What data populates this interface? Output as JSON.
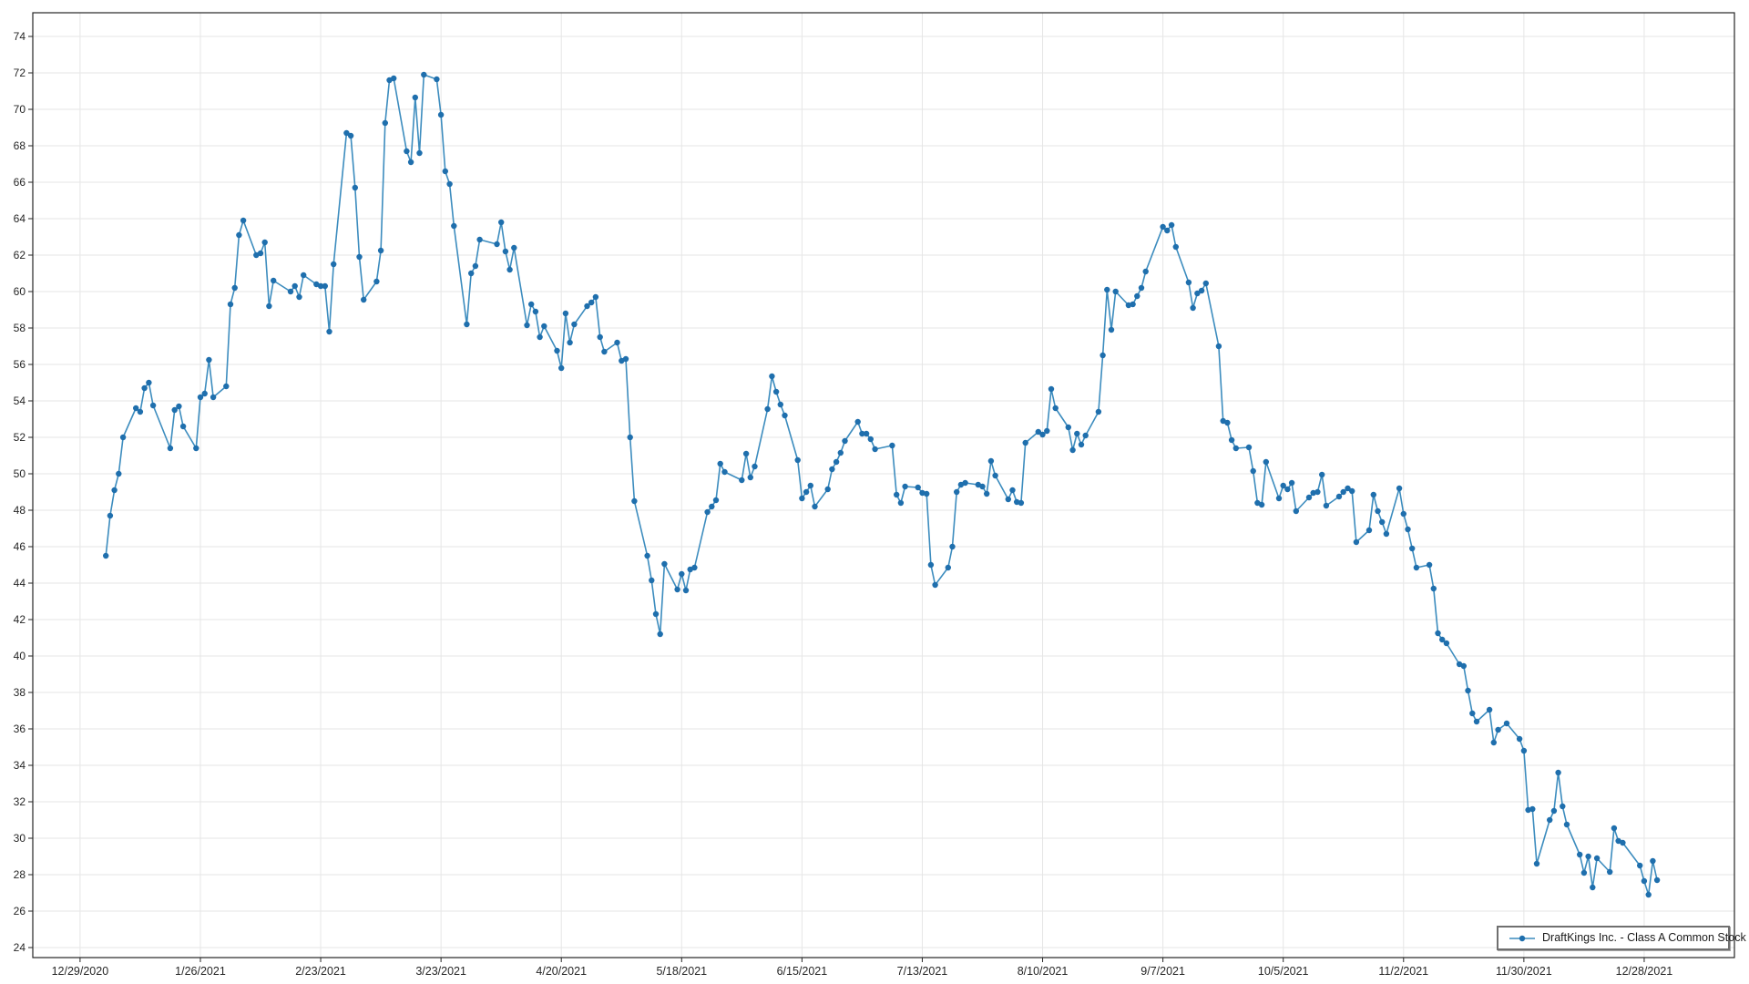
{
  "window": {
    "background": "#ffffff"
  },
  "legend": {
    "label": "DraftKings Inc. - Class A Common Stock"
  },
  "chart_data": {
    "type": "line",
    "title": "",
    "xlabel": "",
    "ylabel": "",
    "grid": "on",
    "legend_position": "bottom-right",
    "axis_color": "#262626",
    "grid_color": "#e6e6e6",
    "label_color": "#262626",
    "line_color": "#3c8cbe",
    "marker_color": "#1f6fad",
    "ylim": [
      23.45,
      75.3
    ],
    "xlim": [
      "2020-12-18",
      "2022-01-18"
    ],
    "y_ticks": [
      24,
      26,
      28,
      30,
      32,
      34,
      36,
      38,
      40,
      42,
      44,
      46,
      48,
      50,
      52,
      54,
      56,
      58,
      60,
      62,
      64,
      66,
      68,
      70,
      72,
      74
    ],
    "x_ticks": [
      {
        "label": "12/29/2020",
        "date": "2020-12-29"
      },
      {
        "label": "1/26/2021",
        "date": "2021-01-26"
      },
      {
        "label": "2/23/2021",
        "date": "2021-02-23"
      },
      {
        "label": "3/23/2021",
        "date": "2021-03-23"
      },
      {
        "label": "4/20/2021",
        "date": "2021-04-20"
      },
      {
        "label": "5/18/2021",
        "date": "2021-05-18"
      },
      {
        "label": "6/15/2021",
        "date": "2021-06-15"
      },
      {
        "label": "7/13/2021",
        "date": "2021-07-13"
      },
      {
        "label": "8/10/2021",
        "date": "2021-08-10"
      },
      {
        "label": "9/7/2021",
        "date": "2021-09-07"
      },
      {
        "label": "10/5/2021",
        "date": "2021-10-05"
      },
      {
        "label": "11/2/2021",
        "date": "2021-11-02"
      },
      {
        "label": "11/30/2021",
        "date": "2021-11-30"
      },
      {
        "label": "12/28/2021",
        "date": "2021-12-28"
      }
    ],
    "series": [
      {
        "name": "DraftKings Inc. - Class A Common Stock",
        "points": [
          [
            "2021-01-04",
            45.5
          ],
          [
            "2021-01-05",
            47.7
          ],
          [
            "2021-01-06",
            49.1
          ],
          [
            "2021-01-07",
            50.0
          ],
          [
            "2021-01-08",
            52.0
          ],
          [
            "2021-01-11",
            53.6
          ],
          [
            "2021-01-12",
            53.4
          ],
          [
            "2021-01-13",
            54.7
          ],
          [
            "2021-01-14",
            55.0
          ],
          [
            "2021-01-15",
            53.75
          ],
          [
            "2021-01-19",
            51.4
          ],
          [
            "2021-01-20",
            53.5
          ],
          [
            "2021-01-21",
            53.7
          ],
          [
            "2021-01-22",
            52.6
          ],
          [
            "2021-01-25",
            51.4
          ],
          [
            "2021-01-26",
            54.2
          ],
          [
            "2021-01-27",
            54.4
          ],
          [
            "2021-01-28",
            56.25
          ],
          [
            "2021-01-29",
            54.2
          ],
          [
            "2021-02-01",
            54.8
          ],
          [
            "2021-02-02",
            59.3
          ],
          [
            "2021-02-03",
            60.2
          ],
          [
            "2021-02-04",
            63.1
          ],
          [
            "2021-02-05",
            63.9
          ],
          [
            "2021-02-08",
            62.0
          ],
          [
            "2021-02-09",
            62.1
          ],
          [
            "2021-02-10",
            62.7
          ],
          [
            "2021-02-11",
            59.2
          ],
          [
            "2021-02-12",
            60.6
          ],
          [
            "2021-02-16",
            60.0
          ],
          [
            "2021-02-17",
            60.3
          ],
          [
            "2021-02-18",
            59.7
          ],
          [
            "2021-02-19",
            60.9
          ],
          [
            "2021-02-22",
            60.4
          ],
          [
            "2021-02-23",
            60.3
          ],
          [
            "2021-02-24",
            60.3
          ],
          [
            "2021-02-25",
            57.8
          ],
          [
            "2021-02-26",
            61.5
          ],
          [
            "2021-03-01",
            68.7
          ],
          [
            "2021-03-02",
            68.55
          ],
          [
            "2021-03-03",
            65.7
          ],
          [
            "2021-03-04",
            61.9
          ],
          [
            "2021-03-05",
            59.55
          ],
          [
            "2021-03-08",
            60.55
          ],
          [
            "2021-03-09",
            62.25
          ],
          [
            "2021-03-10",
            69.25
          ],
          [
            "2021-03-11",
            71.6
          ],
          [
            "2021-03-12",
            71.7
          ],
          [
            "2021-03-15",
            67.7
          ],
          [
            "2021-03-16",
            67.1
          ],
          [
            "2021-03-17",
            70.65
          ],
          [
            "2021-03-18",
            67.6
          ],
          [
            "2021-03-19",
            71.9
          ],
          [
            "2021-03-22",
            71.65
          ],
          [
            "2021-03-23",
            69.7
          ],
          [
            "2021-03-24",
            66.6
          ],
          [
            "2021-03-25",
            65.9
          ],
          [
            "2021-03-26",
            63.6
          ],
          [
            "2021-03-29",
            58.2
          ],
          [
            "2021-03-30",
            61.0
          ],
          [
            "2021-03-31",
            61.4
          ],
          [
            "2021-04-01",
            62.85
          ],
          [
            "2021-04-05",
            62.6
          ],
          [
            "2021-04-06",
            63.8
          ],
          [
            "2021-04-07",
            62.2
          ],
          [
            "2021-04-08",
            61.2
          ],
          [
            "2021-04-09",
            62.4
          ],
          [
            "2021-04-12",
            58.15
          ],
          [
            "2021-04-13",
            59.3
          ],
          [
            "2021-04-14",
            58.9
          ],
          [
            "2021-04-15",
            57.5
          ],
          [
            "2021-04-16",
            58.1
          ],
          [
            "2021-04-19",
            56.75
          ],
          [
            "2021-04-20",
            55.8
          ],
          [
            "2021-04-21",
            58.8
          ],
          [
            "2021-04-22",
            57.2
          ],
          [
            "2021-04-23",
            58.2
          ],
          [
            "2021-04-26",
            59.2
          ],
          [
            "2021-04-27",
            59.4
          ],
          [
            "2021-04-28",
            59.7
          ],
          [
            "2021-04-29",
            57.5
          ],
          [
            "2021-04-30",
            56.7
          ],
          [
            "2021-05-03",
            57.2
          ],
          [
            "2021-05-04",
            56.2
          ],
          [
            "2021-05-05",
            56.3
          ],
          [
            "2021-05-06",
            52.0
          ],
          [
            "2021-05-07",
            48.5
          ],
          [
            "2021-05-10",
            45.5
          ],
          [
            "2021-05-11",
            44.15
          ],
          [
            "2021-05-12",
            42.3
          ],
          [
            "2021-05-13",
            41.2
          ],
          [
            "2021-05-14",
            45.05
          ],
          [
            "2021-05-17",
            43.65
          ],
          [
            "2021-05-18",
            44.5
          ],
          [
            "2021-05-19",
            43.6
          ],
          [
            "2021-05-20",
            44.75
          ],
          [
            "2021-05-21",
            44.85
          ],
          [
            "2021-05-24",
            47.9
          ],
          [
            "2021-05-25",
            48.2
          ],
          [
            "2021-05-26",
            48.55
          ],
          [
            "2021-05-27",
            50.55
          ],
          [
            "2021-05-28",
            50.1
          ],
          [
            "2021-06-01",
            49.65
          ],
          [
            "2021-06-02",
            51.1
          ],
          [
            "2021-06-03",
            49.8
          ],
          [
            "2021-06-04",
            50.4
          ],
          [
            "2021-06-07",
            53.55
          ],
          [
            "2021-06-08",
            55.35
          ],
          [
            "2021-06-09",
            54.5
          ],
          [
            "2021-06-10",
            53.8
          ],
          [
            "2021-06-11",
            53.2
          ],
          [
            "2021-06-14",
            50.75
          ],
          [
            "2021-06-15",
            48.65
          ],
          [
            "2021-06-16",
            49.0
          ],
          [
            "2021-06-17",
            49.35
          ],
          [
            "2021-06-18",
            48.2
          ],
          [
            "2021-06-21",
            49.15
          ],
          [
            "2021-06-22",
            50.25
          ],
          [
            "2021-06-23",
            50.65
          ],
          [
            "2021-06-24",
            51.15
          ],
          [
            "2021-06-25",
            51.8
          ],
          [
            "2021-06-28",
            52.85
          ],
          [
            "2021-06-29",
            52.2
          ],
          [
            "2021-06-30",
            52.2
          ],
          [
            "2021-07-01",
            51.9
          ],
          [
            "2021-07-02",
            51.35
          ],
          [
            "2021-07-06",
            51.55
          ],
          [
            "2021-07-07",
            48.85
          ],
          [
            "2021-07-08",
            48.4
          ],
          [
            "2021-07-09",
            49.3
          ],
          [
            "2021-07-12",
            49.25
          ],
          [
            "2021-07-13",
            48.95
          ],
          [
            "2021-07-14",
            48.9
          ],
          [
            "2021-07-15",
            45.0
          ],
          [
            "2021-07-16",
            43.9
          ],
          [
            "2021-07-19",
            44.85
          ],
          [
            "2021-07-20",
            46.0
          ],
          [
            "2021-07-21",
            49.0
          ],
          [
            "2021-07-22",
            49.4
          ],
          [
            "2021-07-23",
            49.5
          ],
          [
            "2021-07-26",
            49.4
          ],
          [
            "2021-07-27",
            49.3
          ],
          [
            "2021-07-28",
            48.9
          ],
          [
            "2021-07-29",
            50.7
          ],
          [
            "2021-07-30",
            49.9
          ],
          [
            "2021-08-02",
            48.6
          ],
          [
            "2021-08-03",
            49.1
          ],
          [
            "2021-08-04",
            48.45
          ],
          [
            "2021-08-05",
            48.4
          ],
          [
            "2021-08-06",
            51.7
          ],
          [
            "2021-08-09",
            52.3
          ],
          [
            "2021-08-10",
            52.15
          ],
          [
            "2021-08-11",
            52.35
          ],
          [
            "2021-08-12",
            54.65
          ],
          [
            "2021-08-13",
            53.6
          ],
          [
            "2021-08-16",
            52.55
          ],
          [
            "2021-08-17",
            51.3
          ],
          [
            "2021-08-18",
            52.2
          ],
          [
            "2021-08-19",
            51.6
          ],
          [
            "2021-08-20",
            52.1
          ],
          [
            "2021-08-23",
            53.4
          ],
          [
            "2021-08-24",
            56.5
          ],
          [
            "2021-08-25",
            60.1
          ],
          [
            "2021-08-26",
            57.9
          ],
          [
            "2021-08-27",
            60.0
          ],
          [
            "2021-08-30",
            59.25
          ],
          [
            "2021-08-31",
            59.3
          ],
          [
            "2021-09-01",
            59.75
          ],
          [
            "2021-09-02",
            60.2
          ],
          [
            "2021-09-03",
            61.1
          ],
          [
            "2021-09-07",
            63.55
          ],
          [
            "2021-09-08",
            63.35
          ],
          [
            "2021-09-09",
            63.65
          ],
          [
            "2021-09-10",
            62.45
          ],
          [
            "2021-09-13",
            60.5
          ],
          [
            "2021-09-14",
            59.1
          ],
          [
            "2021-09-15",
            59.9
          ],
          [
            "2021-09-16",
            60.05
          ],
          [
            "2021-09-17",
            60.45
          ],
          [
            "2021-09-20",
            57.0
          ],
          [
            "2021-09-21",
            52.9
          ],
          [
            "2021-09-22",
            52.8
          ],
          [
            "2021-09-23",
            51.85
          ],
          [
            "2021-09-24",
            51.4
          ],
          [
            "2021-09-27",
            51.45
          ],
          [
            "2021-09-28",
            50.15
          ],
          [
            "2021-09-29",
            48.4
          ],
          [
            "2021-09-30",
            48.3
          ],
          [
            "2021-10-01",
            50.65
          ],
          [
            "2021-10-04",
            48.65
          ],
          [
            "2021-10-05",
            49.35
          ],
          [
            "2021-10-06",
            49.15
          ],
          [
            "2021-10-07",
            49.5
          ],
          [
            "2021-10-08",
            47.95
          ],
          [
            "2021-10-11",
            48.7
          ],
          [
            "2021-10-12",
            48.95
          ],
          [
            "2021-10-13",
            49.0
          ],
          [
            "2021-10-14",
            49.95
          ],
          [
            "2021-10-15",
            48.25
          ],
          [
            "2021-10-18",
            48.75
          ],
          [
            "2021-10-19",
            49.0
          ],
          [
            "2021-10-20",
            49.2
          ],
          [
            "2021-10-21",
            49.05
          ],
          [
            "2021-10-22",
            46.25
          ],
          [
            "2021-10-25",
            46.9
          ],
          [
            "2021-10-26",
            48.85
          ],
          [
            "2021-10-27",
            47.95
          ],
          [
            "2021-10-28",
            47.35
          ],
          [
            "2021-10-29",
            46.7
          ],
          [
            "2021-11-01",
            49.2
          ],
          [
            "2021-11-02",
            47.8
          ],
          [
            "2021-11-03",
            46.95
          ],
          [
            "2021-11-04",
            45.9
          ],
          [
            "2021-11-05",
            44.85
          ],
          [
            "2021-11-08",
            45.0
          ],
          [
            "2021-11-09",
            43.7
          ],
          [
            "2021-11-10",
            41.25
          ],
          [
            "2021-11-11",
            40.9
          ],
          [
            "2021-11-12",
            40.7
          ],
          [
            "2021-11-15",
            39.55
          ],
          [
            "2021-11-16",
            39.45
          ],
          [
            "2021-11-17",
            38.1
          ],
          [
            "2021-11-18",
            36.85
          ],
          [
            "2021-11-19",
            36.4
          ],
          [
            "2021-11-22",
            37.05
          ],
          [
            "2021-11-23",
            35.25
          ],
          [
            "2021-11-24",
            35.95
          ],
          [
            "2021-11-26",
            36.3
          ],
          [
            "2021-11-29",
            35.45
          ],
          [
            "2021-11-30",
            34.8
          ],
          [
            "2021-12-01",
            31.55
          ],
          [
            "2021-12-02",
            31.6
          ],
          [
            "2021-12-03",
            28.6
          ],
          [
            "2021-12-06",
            31.0
          ],
          [
            "2021-12-07",
            31.5
          ],
          [
            "2021-12-08",
            33.6
          ],
          [
            "2021-12-09",
            31.75
          ],
          [
            "2021-12-10",
            30.75
          ],
          [
            "2021-12-13",
            29.1
          ],
          [
            "2021-12-14",
            28.1
          ],
          [
            "2021-12-15",
            29.0
          ],
          [
            "2021-12-16",
            27.3
          ],
          [
            "2021-12-17",
            28.9
          ],
          [
            "2021-12-20",
            28.15
          ],
          [
            "2021-12-21",
            30.55
          ],
          [
            "2021-12-22",
            29.85
          ],
          [
            "2021-12-23",
            29.75
          ],
          [
            "2021-12-27",
            28.5
          ],
          [
            "2021-12-28",
            27.65
          ],
          [
            "2021-12-29",
            26.9
          ],
          [
            "2021-12-30",
            28.75
          ],
          [
            "2021-12-31",
            27.7
          ]
        ]
      }
    ]
  }
}
